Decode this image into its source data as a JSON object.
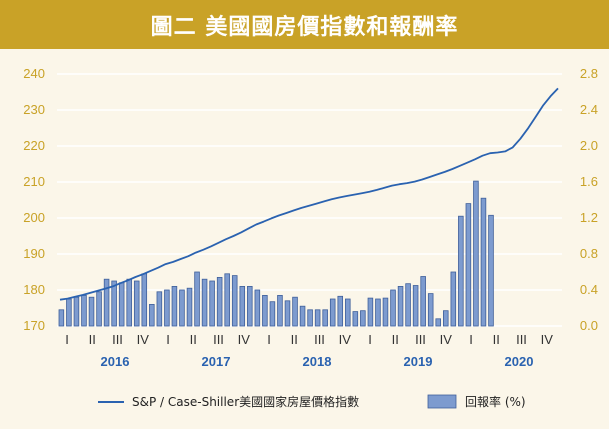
{
  "title": "圖二  美國國房價指數和報酬率",
  "colors": {
    "title_bg": "#c9a227",
    "background": "#fbf6e9",
    "line": "#2a62b0",
    "bar_fill": "#7d9bcf",
    "bar_stroke": "#3f5f9a",
    "tick": "#c9a227",
    "grid": "#ffffff"
  },
  "chart_data": {
    "type": "bar+line",
    "left_axis": {
      "min": 170,
      "max": 240,
      "ticks": [
        "170",
        "180",
        "190",
        "200",
        "210",
        "220",
        "230",
        "240"
      ]
    },
    "right_axis": {
      "min": 0,
      "max": 2.8,
      "ticks": [
        "0.0",
        "0.4",
        "0.8",
        "1.2",
        "1.6",
        "2.0",
        "2.4",
        "2.8"
      ]
    },
    "quarter_labels": [
      "I",
      "II",
      "III",
      "IV",
      "I",
      "II",
      "III",
      "IV",
      "I",
      "II",
      "III",
      "IV",
      "I",
      "II",
      "III",
      "IV",
      "I",
      "II",
      "III",
      "IV"
    ],
    "year_labels": [
      "2016",
      "2017",
      "2018",
      "2019",
      "2020"
    ],
    "series": [
      {
        "name": "S&P / Case-Shiller美國國家房屋價格指數",
        "kind": "line",
        "axis": "left",
        "values": [
          177.3,
          177.6,
          178.1,
          178.6,
          179.2,
          179.8,
          180.4,
          181.0,
          181.9,
          182.7,
          183.6,
          184.4,
          185.3,
          186.2,
          187.2,
          187.8,
          188.6,
          189.4,
          190.4,
          191.2,
          192.1,
          193.1,
          194.1,
          195.0,
          196.0,
          197.1,
          198.2,
          199.0,
          199.9,
          200.7,
          201.4,
          202.1,
          202.8,
          203.4,
          204.0,
          204.6,
          205.2,
          205.7,
          206.1,
          206.5,
          206.9,
          207.3,
          207.8,
          208.4,
          209.0,
          209.4,
          209.7,
          210.1,
          210.7,
          211.4,
          212.1,
          212.8,
          213.6,
          214.5,
          215.4,
          216.3,
          217.3,
          218.0,
          218.2,
          218.5,
          219.6,
          222.0,
          224.8,
          228.0,
          231.2,
          233.8,
          236.0
        ]
      },
      {
        "name": "回報率 (%)",
        "kind": "bar",
        "axis": "right",
        "values": [
          0.18,
          0.3,
          0.32,
          0.34,
          0.32,
          0.38,
          0.52,
          0.5,
          0.48,
          0.52,
          0.5,
          0.58,
          0.24,
          0.38,
          0.4,
          0.44,
          0.4,
          0.42,
          0.6,
          0.52,
          0.5,
          0.54,
          0.58,
          0.56,
          0.44,
          0.44,
          0.4,
          0.34,
          0.27,
          0.34,
          0.28,
          0.32,
          0.22,
          0.18,
          0.18,
          0.18,
          0.3,
          0.33,
          0.3,
          0.16,
          0.17,
          0.31,
          0.3,
          0.31,
          0.4,
          0.44,
          0.47,
          0.45,
          0.55,
          0.36,
          0.08,
          0.17,
          0.6,
          1.22,
          1.36,
          1.61,
          1.42,
          1.23
        ]
      }
    ],
    "grid": "horizontal",
    "legend": "bottom"
  }
}
